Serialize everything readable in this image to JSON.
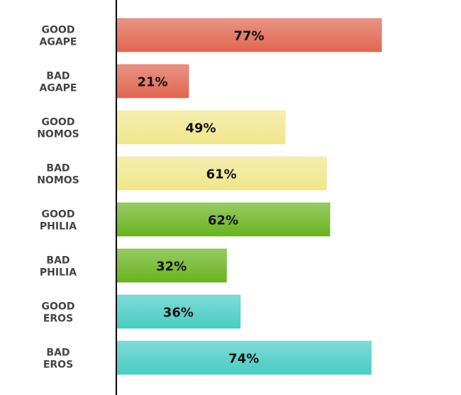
{
  "chart_data": {
    "type": "bar",
    "orientation": "horizontal",
    "categories": [
      [
        "GOOD",
        "AGAPE"
      ],
      [
        "BAD",
        "AGAPE"
      ],
      [
        "GOOD",
        "NOMOS"
      ],
      [
        "BAD",
        "NOMOS"
      ],
      [
        "GOOD",
        "PHILIA"
      ],
      [
        "BAD",
        "PHILIA"
      ],
      [
        "GOOD",
        "EROS"
      ],
      [
        "BAD",
        "EROS"
      ]
    ],
    "values": [
      77,
      21,
      49,
      61,
      62,
      32,
      36,
      74
    ],
    "value_labels": [
      "77%",
      "21%",
      "49%",
      "61%",
      "62%",
      "32%",
      "36%",
      "74%"
    ],
    "colors": [
      "#e06650",
      "#e06650",
      "#f0e68c",
      "#f0e68c",
      "#6ab320",
      "#6ab320",
      "#48ccc4",
      "#48ccc4"
    ],
    "xlim": [
      0,
      100
    ],
    "grid": false,
    "title": "",
    "xlabel": "",
    "ylabel": ""
  }
}
